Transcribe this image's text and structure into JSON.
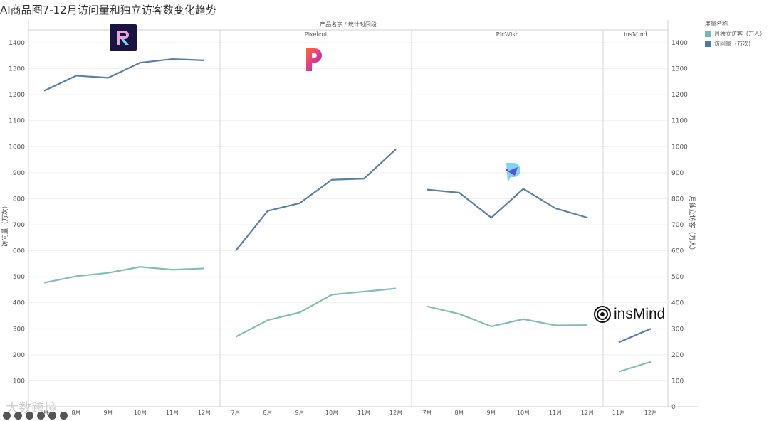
{
  "title": "AI商品图7-12月访问量和独立访客数变化趋势",
  "header_label": "产品名字 / 统计时间段",
  "legend": {
    "title": "度量名称",
    "items": [
      {
        "label": "月独立访客（万人）",
        "color": "#76b7b2"
      },
      {
        "label": "访问量（万次）",
        "color": "#4e79a7"
      }
    ]
  },
  "logos": {
    "picwish_alt": "PicWish logo",
    "insmind_text": "insMind"
  },
  "watermark": "大数跨境",
  "chart_data": {
    "type": "line",
    "title": "AI商品图7-12月访问量和独立访客数变化趋势",
    "xlabel": "产品名字 / 统计时间段",
    "ylabel_left": "访问量（万次）",
    "ylabel_right": "月独立访客（万人）",
    "ylim_left": [
      0,
      1450
    ],
    "ylim_right": [
      0,
      1450
    ],
    "yticks": [
      0,
      100,
      200,
      300,
      400,
      500,
      600,
      700,
      800,
      900,
      1000,
      1100,
      1200,
      1300,
      1400
    ],
    "grid": true,
    "legend_position": "top-right",
    "panels": [
      {
        "name": "",
        "categories": [
          "7月",
          "8月",
          "9月",
          "10月",
          "11月",
          "12月"
        ],
        "series": [
          {
            "name": "访问量（万次）",
            "values": [
              1215,
              1273,
              1265,
              1323,
              1337,
              1332
            ]
          },
          {
            "name": "月独立访客（万人）",
            "values": [
              477,
              502,
              515,
              538,
              527,
              532
            ]
          }
        ]
      },
      {
        "name": "Pixelcut",
        "categories": [
          "7月",
          "8月",
          "9月",
          "10月",
          "11月",
          "12月"
        ],
        "series": [
          {
            "name": "访问量（万次）",
            "values": [
              600,
              753,
              783,
              873,
              877,
              990
            ]
          },
          {
            "name": "月独立访客（万人）",
            "values": [
              269,
              333,
              363,
              431,
              443,
              455
            ]
          }
        ]
      },
      {
        "name": "PicWish",
        "categories": [
          "7月",
          "8月",
          "9月",
          "10月",
          "11月",
          "12月"
        ],
        "series": [
          {
            "name": "访问量（万次）",
            "values": [
              835,
              823,
              727,
              838,
              763,
              727
            ]
          },
          {
            "name": "月独立访客（万人）",
            "values": [
              386,
              357,
              309,
              337,
              313,
              314
            ]
          }
        ]
      },
      {
        "name": "insMind",
        "categories": [
          "11月",
          "12月"
        ],
        "series": [
          {
            "name": "访问量（万次）",
            "values": [
              248,
              300
            ]
          },
          {
            "name": "月独立访客（万人）",
            "values": [
              135,
              173
            ]
          }
        ]
      }
    ]
  }
}
